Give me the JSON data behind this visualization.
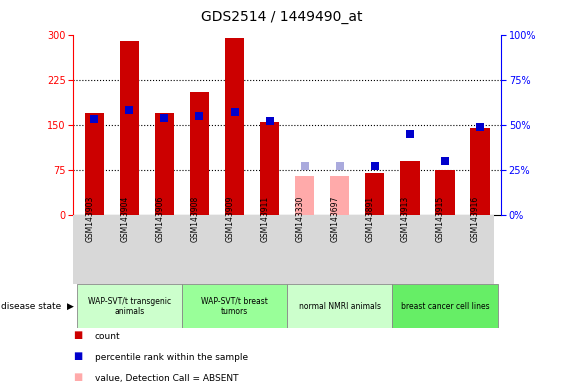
{
  "title": "GDS2514 / 1449490_at",
  "samples": [
    "GSM143903",
    "GSM143904",
    "GSM143906",
    "GSM143908",
    "GSM143909",
    "GSM143911",
    "GSM143330",
    "GSM143697",
    "GSM143891",
    "GSM143913",
    "GSM143915",
    "GSM143916"
  ],
  "count_values": [
    170,
    290,
    170,
    205,
    295,
    155,
    null,
    null,
    70,
    90,
    75,
    145
  ],
  "count_absent": [
    null,
    null,
    null,
    null,
    null,
    null,
    65,
    65,
    null,
    null,
    null,
    null
  ],
  "rank_values": [
    53,
    58,
    54,
    55,
    57,
    52,
    null,
    null,
    27,
    45,
    30,
    49
  ],
  "rank_absent": [
    null,
    null,
    null,
    null,
    null,
    null,
    27,
    27,
    null,
    null,
    null,
    null
  ],
  "disease_groups": [
    {
      "label": "WAP-SVT/t transgenic\nanimals",
      "start": 0,
      "end": 3,
      "color": "#ccffcc"
    },
    {
      "label": "WAP-SVT/t breast\ntumors",
      "start": 3,
      "end": 6,
      "color": "#99ff99"
    },
    {
      "label": "normal NMRI animals",
      "start": 6,
      "end": 9,
      "color": "#ccffcc"
    },
    {
      "label": "breast cancer cell lines",
      "start": 9,
      "end": 12,
      "color": "#66ee66"
    }
  ],
  "left_ylim": [
    0,
    300
  ],
  "right_ylim": [
    0,
    100
  ],
  "left_yticks": [
    0,
    75,
    150,
    225,
    300
  ],
  "right_yticks": [
    0,
    25,
    50,
    75,
    100
  ],
  "right_yticklabels": [
    "0%",
    "25%",
    "50%",
    "75%",
    "100%"
  ],
  "bar_color": "#cc0000",
  "bar_absent_color": "#ffaaaa",
  "rank_color": "#0000cc",
  "rank_absent_color": "#aaaadd",
  "bar_width": 0.55,
  "rank_marker_size": 35,
  "bg_color": "#ffffff"
}
